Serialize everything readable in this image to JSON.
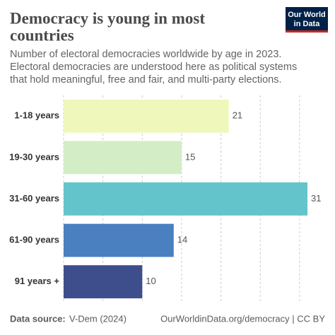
{
  "chart_data": {
    "type": "bar",
    "orientation": "horizontal",
    "title": [
      "Democracy is young in most",
      "countries"
    ],
    "subtitle": [
      "Number of electoral democracies worldwide by age in 2023.",
      "Electoral democracies are understood here as political systems",
      "that hold meaningful, free and fair, and multi-party elections."
    ],
    "categories": [
      "1-18 years",
      "19-30 years",
      "31-60 years",
      "61-90 years",
      "91 years +"
    ],
    "values": [
      21,
      15,
      31,
      14,
      10
    ],
    "colors": [
      "#f0f7bb",
      "#d3eec6",
      "#63c4cc",
      "#4b80c0",
      "#3e4d8c"
    ],
    "xlim": [
      0,
      31
    ],
    "xticks": [
      0,
      5,
      10,
      15,
      20,
      25,
      30
    ],
    "grid": true,
    "source_label": "Data source:",
    "source": "V-Dem (2024)",
    "credit": "OurWorldinData.org/democracy | CC BY",
    "logo": [
      "Our World",
      "in Data"
    ]
  }
}
